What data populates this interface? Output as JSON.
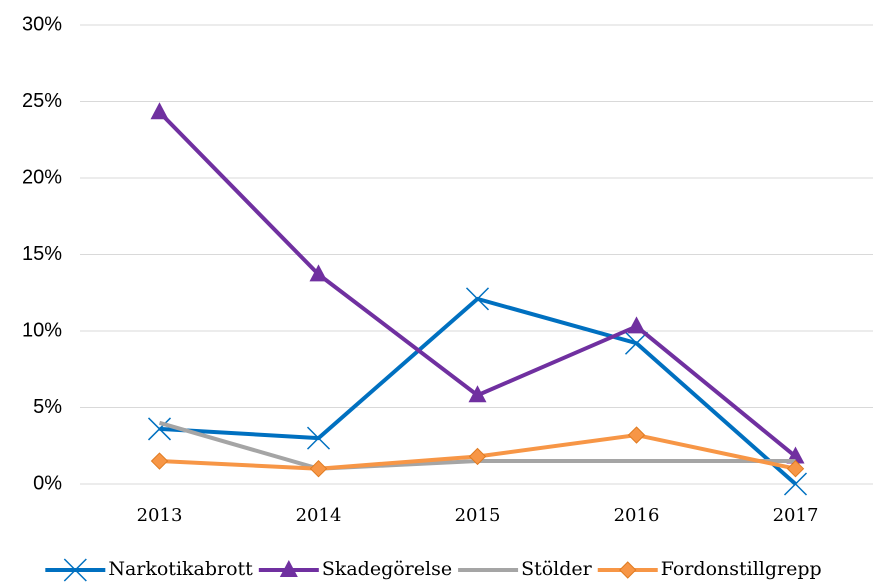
{
  "chart_data": {
    "type": "line",
    "categories": [
      "2013",
      "2014",
      "2015",
      "2016",
      "2017"
    ],
    "series": [
      {
        "name": "Narkotikabrott",
        "color": "#0070c0",
        "marker": "x",
        "values": [
          3.6,
          3.0,
          12.1,
          9.2,
          0
        ]
      },
      {
        "name": "Skadegörelse",
        "color": "#7030a0",
        "marker": "triangle",
        "values": [
          24.3,
          13.7,
          5.8,
          10.3,
          1.8
        ]
      },
      {
        "name": "Stölder",
        "color": "#a5a5a5",
        "marker": "none",
        "values": [
          4.0,
          1.0,
          1.5,
          1.5,
          1.5
        ]
      },
      {
        "name": "Fordonstillgrepp",
        "color": "#f79646",
        "marker": "diamond",
        "values": [
          1.5,
          1.0,
          1.8,
          3.2,
          1.0
        ]
      }
    ],
    "ylim": [
      0,
      30
    ],
    "yticks": [
      {
        "value": 0,
        "label": "0%"
      },
      {
        "value": 5,
        "label": "5%"
      },
      {
        "value": 10,
        "label": "10%"
      },
      {
        "value": 15,
        "label": "15%"
      },
      {
        "value": 20,
        "label": "20%"
      },
      {
        "value": 25,
        "label": "25%"
      },
      {
        "value": 30,
        "label": "30%"
      }
    ],
    "grid": true,
    "legend": "bottom"
  }
}
